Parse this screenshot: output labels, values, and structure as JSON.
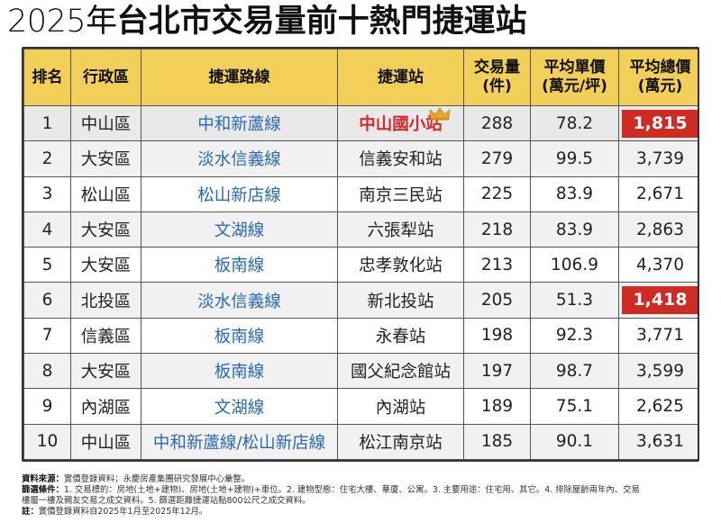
{
  "title": {
    "year": "2025年",
    "main": "台北市交易量前十熱門捷運站"
  },
  "table": {
    "headers": {
      "rank": "排名",
      "district": "行政區",
      "line": "捷運路線",
      "station": "捷運站",
      "volume_1": "交易量",
      "volume_2": "(件)",
      "unit_price_1": "平均單價",
      "unit_price_2": "(萬元/坪)",
      "total_price_1": "平均總價",
      "total_price_2": "(萬元)"
    },
    "rows": [
      {
        "rank": "1",
        "district": "中山區",
        "line": "中和新蘆線",
        "station": "中山國小站",
        "volume": "288",
        "unit_price": "78.2",
        "total_price": "1,815"
      },
      {
        "rank": "2",
        "district": "大安區",
        "line": "淡水信義線",
        "station": "信義安和站",
        "volume": "279",
        "unit_price": "99.5",
        "total_price": "3,739"
      },
      {
        "rank": "3",
        "district": "松山區",
        "line": "松山新店線",
        "station": "南京三民站",
        "volume": "225",
        "unit_price": "83.9",
        "total_price": "2,671"
      },
      {
        "rank": "4",
        "district": "大安區",
        "line": "文湖線",
        "station": "六張犁站",
        "volume": "218",
        "unit_price": "83.9",
        "total_price": "2,863"
      },
      {
        "rank": "5",
        "district": "大安區",
        "line": "板南線",
        "station": "忠孝敦化站",
        "volume": "213",
        "unit_price": "106.9",
        "total_price": "4,370"
      },
      {
        "rank": "6",
        "district": "北投區",
        "line": "淡水信義線",
        "station": "新北投站",
        "volume": "205",
        "unit_price": "51.3",
        "total_price": "1,418"
      },
      {
        "rank": "7",
        "district": "信義區",
        "line": "板南線",
        "station": "永春站",
        "volume": "198",
        "unit_price": "92.3",
        "total_price": "3,771"
      },
      {
        "rank": "8",
        "district": "大安區",
        "line": "板南線",
        "station": "國父紀念館站",
        "volume": "197",
        "unit_price": "98.7",
        "total_price": "3,599"
      },
      {
        "rank": "9",
        "district": "內湖區",
        "line": "文湖線",
        "station": "內湖站",
        "volume": "189",
        "unit_price": "75.1",
        "total_price": "2,625"
      },
      {
        "rank": "10",
        "district": "中山區",
        "line": "中和新蘆線/松山新店線",
        "station": "松江南京站",
        "volume": "185",
        "unit_price": "90.1",
        "total_price": "3,631"
      }
    ]
  },
  "notes": {
    "source_label": "資料來源：",
    "source_text": "實價登錄資料；永慶房產集團研究發展中心彙整。",
    "filter_label": "篩選條件：",
    "filter_text_1": "1. 交易標的：房地(土地+建物)、房地(土地+建物)+車位。2. 建物型態：住宅大樓、華廈、公寓。3. 主要用途：住宅用、其它。4. 排除屋齡兩年內、交易",
    "filter_text_2": "樓層一樓及親友交易之成交資料。5. 篩選距離捷運站點800公尺之成交資料。",
    "note_label": "註：",
    "note_text": "實價登錄資料自2025年1月至2025年12月。"
  },
  "colors": {
    "header_bg": "#f2cf58",
    "line_text": "#2a69b8",
    "highlight": "#cf2b25",
    "top_station": "#d42a2a",
    "crown": "#e8a526"
  },
  "icons": {
    "crown": "crown-icon"
  }
}
